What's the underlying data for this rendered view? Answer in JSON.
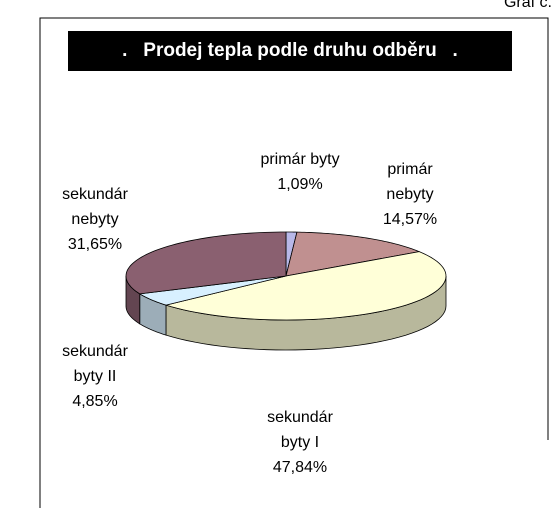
{
  "chart_data": {
    "type": "pie",
    "subtitle": "Graf č.",
    "title": ".   Prodej tepla podle druhu odběru   .",
    "categories": [
      "primár byty",
      "primár nebyty",
      "sekundár byty I",
      "sekundár byty II",
      "sekundár nebyty"
    ],
    "values": [
      1.09,
      14.57,
      47.84,
      4.85,
      31.65
    ],
    "value_labels": [
      "1,09%",
      "14,57%",
      "47,84%",
      "4,85%",
      "31,65%"
    ],
    "colors": [
      "#b8b8e8",
      "#c09090",
      "#ffffd8",
      "#d8f0ff",
      "#8a6070"
    ]
  }
}
